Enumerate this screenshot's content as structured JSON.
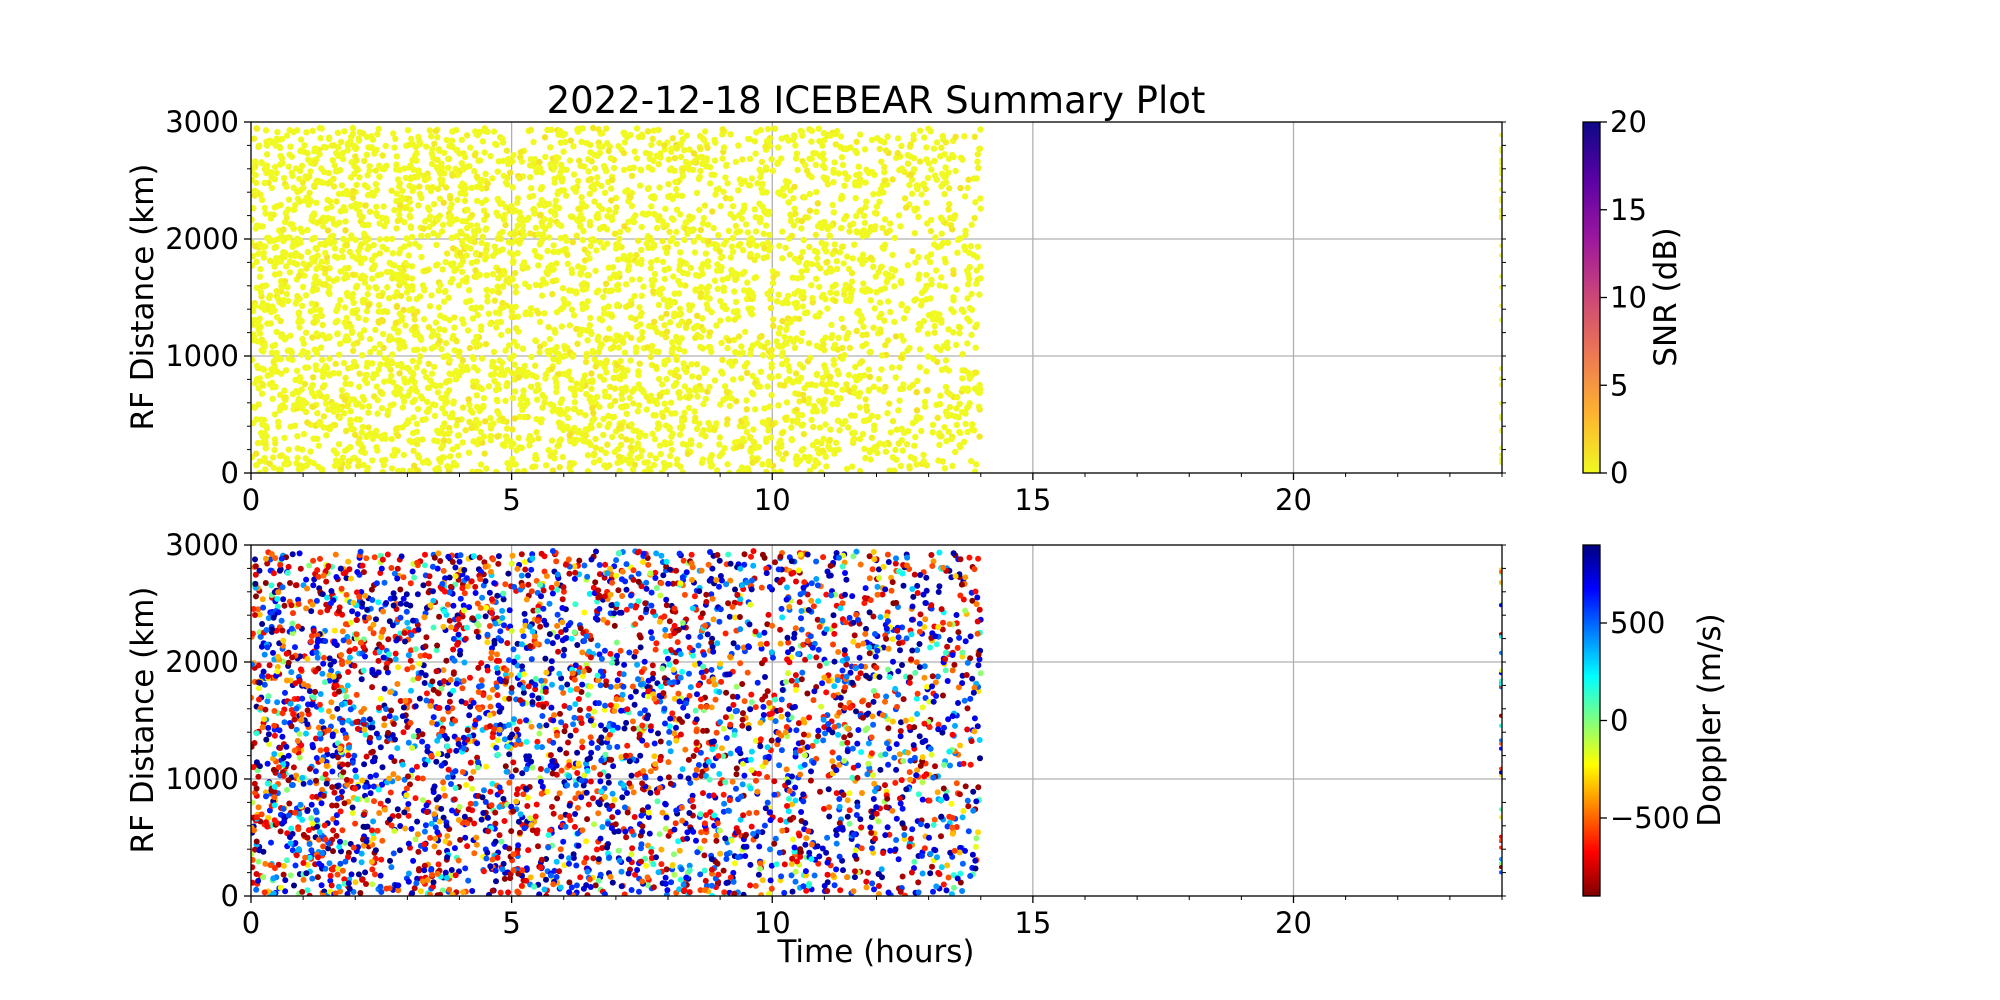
{
  "chart_data": {
    "type": "scatter",
    "title": "2022-12-18 ICEBEAR Summary Plot",
    "panels": [
      {
        "id": "snr",
        "ylabel": "RF Distance (km)",
        "xlabel": "",
        "xlim": [
          0,
          24
        ],
        "ylim": [
          0,
          3000
        ],
        "xticks": [
          0,
          5,
          10,
          15,
          20
        ],
        "yticks": [
          0,
          1000,
          2000,
          3000
        ],
        "grid": true,
        "colorbar": {
          "label": "SNR (dB)",
          "range": [
            0,
            20
          ],
          "ticks": [
            0,
            5,
            10,
            15,
            20
          ],
          "colormap": "plasma_r",
          "colors": [
            "#f0f921",
            "#fdb42f",
            "#ed7953",
            "#cc4778",
            "#9c179e",
            "#5c01a6",
            "#0d0887"
          ]
        },
        "data": {
          "time_range_hours": [
            0,
            14
          ],
          "distance_range_km": [
            0,
            2950
          ],
          "dominant_value_db": 0,
          "late_points_time_hours": 24
        }
      },
      {
        "id": "doppler",
        "ylabel": "RF Distance (km)",
        "xlabel": "Time (hours)",
        "xlim": [
          0,
          24
        ],
        "ylim": [
          0,
          3000
        ],
        "xticks": [
          0,
          5,
          10,
          15,
          20
        ],
        "yticks": [
          0,
          1000,
          2000,
          3000
        ],
        "grid": true,
        "colorbar": {
          "label": "Doppler (m/s)",
          "range": [
            -900,
            900
          ],
          "ticks": [
            -500,
            0,
            500
          ],
          "tick_labels": [
            "−500",
            "0",
            "500"
          ],
          "colormap": "jet_r",
          "colors": [
            "#800000",
            "#ff0000",
            "#ff8000",
            "#ffff00",
            "#80ff80",
            "#00ffff",
            "#0080ff",
            "#0000ff",
            "#000080"
          ]
        },
        "data": {
          "time_range_hours": [
            0,
            14
          ],
          "distance_range_km": [
            0,
            2950
          ],
          "value_range_ms": [
            -900,
            900
          ],
          "late_points_time_hours": 24
        }
      }
    ]
  }
}
